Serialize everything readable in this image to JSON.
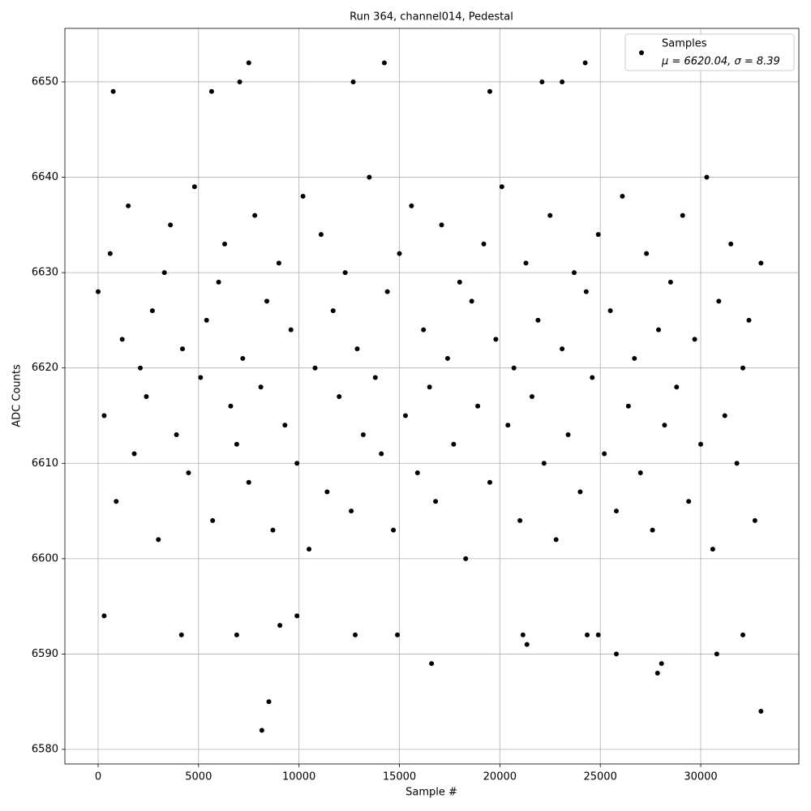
{
  "chart_data": {
    "type": "scatter",
    "title": "Run 364, channel014, Pedestal",
    "x_label": "Sample #",
    "y_label": "ADC Counts",
    "legend_note": "μ = 6620.04, σ = 8.39",
    "legend_position": "upper right",
    "grid": true,
    "xlim": [
      -1655,
      34885
    ],
    "ylim": [
      6578.47,
      6655.61
    ],
    "xticks": [
      0,
      5000,
      10000,
      15000,
      20000,
      25000,
      30000
    ],
    "yticks": [
      6580,
      6590,
      6600,
      6610,
      6620,
      6630,
      6640,
      6650
    ],
    "series": [
      {
        "name": "Samples",
        "color": "#000000",
        "x": [
          0,
          300,
          600,
          900,
          1200,
          1500,
          1800,
          2100,
          2400,
          2700,
          3000,
          3300,
          3600,
          3900,
          4200,
          4500,
          4800,
          5100,
          5400,
          5700,
          6000,
          6300,
          6600,
          6900,
          7200,
          7500,
          7800,
          8100,
          8400,
          8700,
          9000,
          9300,
          9600,
          9900,
          10200,
          10500,
          10800,
          11100,
          11400,
          11700,
          12000,
          12300,
          12600,
          12900,
          13200,
          13500,
          13800,
          14100,
          14400,
          14700,
          15000,
          15300,
          15600,
          15900,
          16200,
          16500,
          16800,
          17100,
          17400,
          17700,
          18000,
          18300,
          18600,
          18900,
          19200,
          19500,
          19800,
          20100,
          20400,
          20700,
          21000,
          21300,
          21600,
          21900,
          22200,
          22500,
          22800,
          23100,
          23400,
          23700,
          24000,
          24300,
          24600,
          24900,
          25200,
          25500,
          25800,
          26100,
          26400,
          26700,
          27000,
          27300,
          27600,
          27900,
          28200,
          28500,
          28800,
          29100,
          29400,
          29700,
          30000,
          30300,
          30600,
          30900,
          31200,
          31500,
          31800,
          32100,
          32400,
          32700,
          33000,
          8150,
          8500,
          33000,
          27850,
          28050,
          16600,
          25800,
          30800,
          21350,
          4150,
          6900,
          12800,
          14900,
          24350,
          24900,
          21150,
          32100,
          7500,
          14250,
          24250,
          750,
          5650,
          7050,
          12700,
          19500,
          22100,
          23100,
          300,
          9050,
          9900
        ],
        "values": [
          6628,
          6615,
          6632,
          6606,
          6623,
          6637,
          6611,
          6620,
          6617,
          6626,
          6602,
          6630,
          6635,
          6613,
          6622,
          6609,
          6639,
          6619,
          6625,
          6604,
          6629,
          6633,
          6616,
          6612,
          6621,
          6608,
          6636,
          6618,
          6627,
          6603,
          6631,
          6614,
          6624,
          6610,
          6638,
          6601,
          6620,
          6634,
          6607,
          6626,
          6617,
          6630,
          6605,
          6622,
          6613,
          6640,
          6619,
          6611,
          6628,
          6603,
          6632,
          6615,
          6637,
          6609,
          6624,
          6618,
          6606,
          6635,
          6621,
          6612,
          6629,
          6600,
          6627,
          6616,
          6633,
          6608,
          6623,
          6639,
          6614,
          6620,
          6604,
          6631,
          6617,
          6625,
          6610,
          6636,
          6602,
          6622,
          6613,
          6630,
          6607,
          6628,
          6619,
          6634,
          6611,
          6626,
          6605,
          6638,
          6616,
          6621,
          6609,
          6632,
          6603,
          6624,
          6614,
          6629,
          6618,
          6636,
          6606,
          6623,
          6612,
          6640,
          6601,
          6627,
          6615,
          6633,
          6610,
          6620,
          6625,
          6604,
          6631,
          6582,
          6585,
          6584,
          6588,
          6589,
          6589,
          6590,
          6590,
          6591,
          6592,
          6592,
          6592,
          6592,
          6592,
          6592,
          6592,
          6592,
          6652,
          6652,
          6652,
          6649,
          6649,
          6650,
          6650,
          6649,
          6650,
          6650,
          6594,
          6593,
          6594
        ]
      }
    ]
  }
}
